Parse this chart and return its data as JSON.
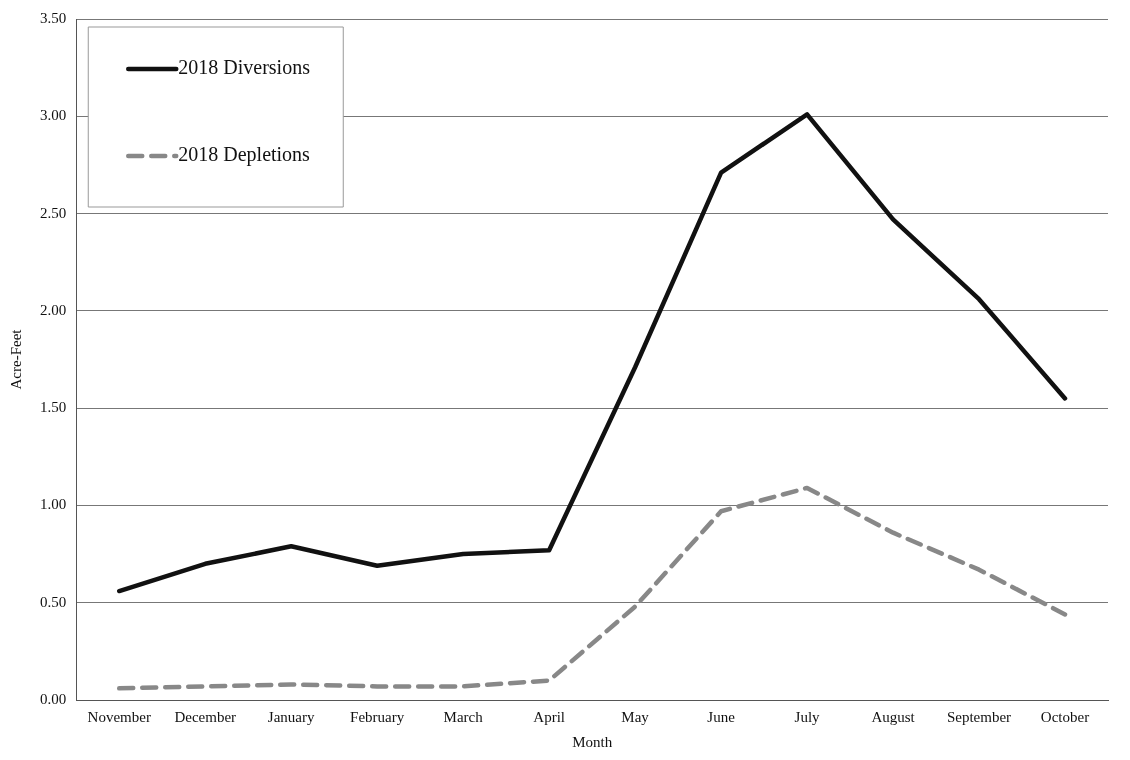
{
  "chart_data": {
    "type": "line",
    "xlabel": "Month",
    "ylabel": "Acre-Feet",
    "categories": [
      "November",
      "December",
      "January",
      "February",
      "March",
      "April",
      "May",
      "June",
      "July",
      "August",
      "September",
      "October"
    ],
    "series": [
      {
        "name": "2018 Diversions",
        "color": "#111111",
        "line_style": "solid",
        "values": [
          0.56,
          0.7,
          0.79,
          0.69,
          0.75,
          0.77,
          1.71,
          2.71,
          3.01,
          2.47,
          2.06,
          1.55
        ]
      },
      {
        "name": "2018 Depletions",
        "color": "#888888",
        "line_style": "dashed",
        "values": [
          0.06,
          0.07,
          0.08,
          0.07,
          0.07,
          0.1,
          0.48,
          0.97,
          1.09,
          0.86,
          0.67,
          0.44
        ]
      }
    ],
    "ylim": [
      0,
      3.5
    ],
    "yticks": [
      {
        "value": 0,
        "label": "0.00"
      },
      {
        "value": 0.5,
        "label": "0.50"
      },
      {
        "value": 1,
        "label": "1.00"
      },
      {
        "value": 1.5,
        "label": "1.50"
      },
      {
        "value": 2,
        "label": "2.00"
      },
      {
        "value": 2.5,
        "label": "2.50"
      },
      {
        "value": 3,
        "label": "3.00"
      },
      {
        "value": 3.5,
        "label": "3.50"
      }
    ],
    "grid": "y",
    "legend": "top left",
    "marker": "none"
  }
}
